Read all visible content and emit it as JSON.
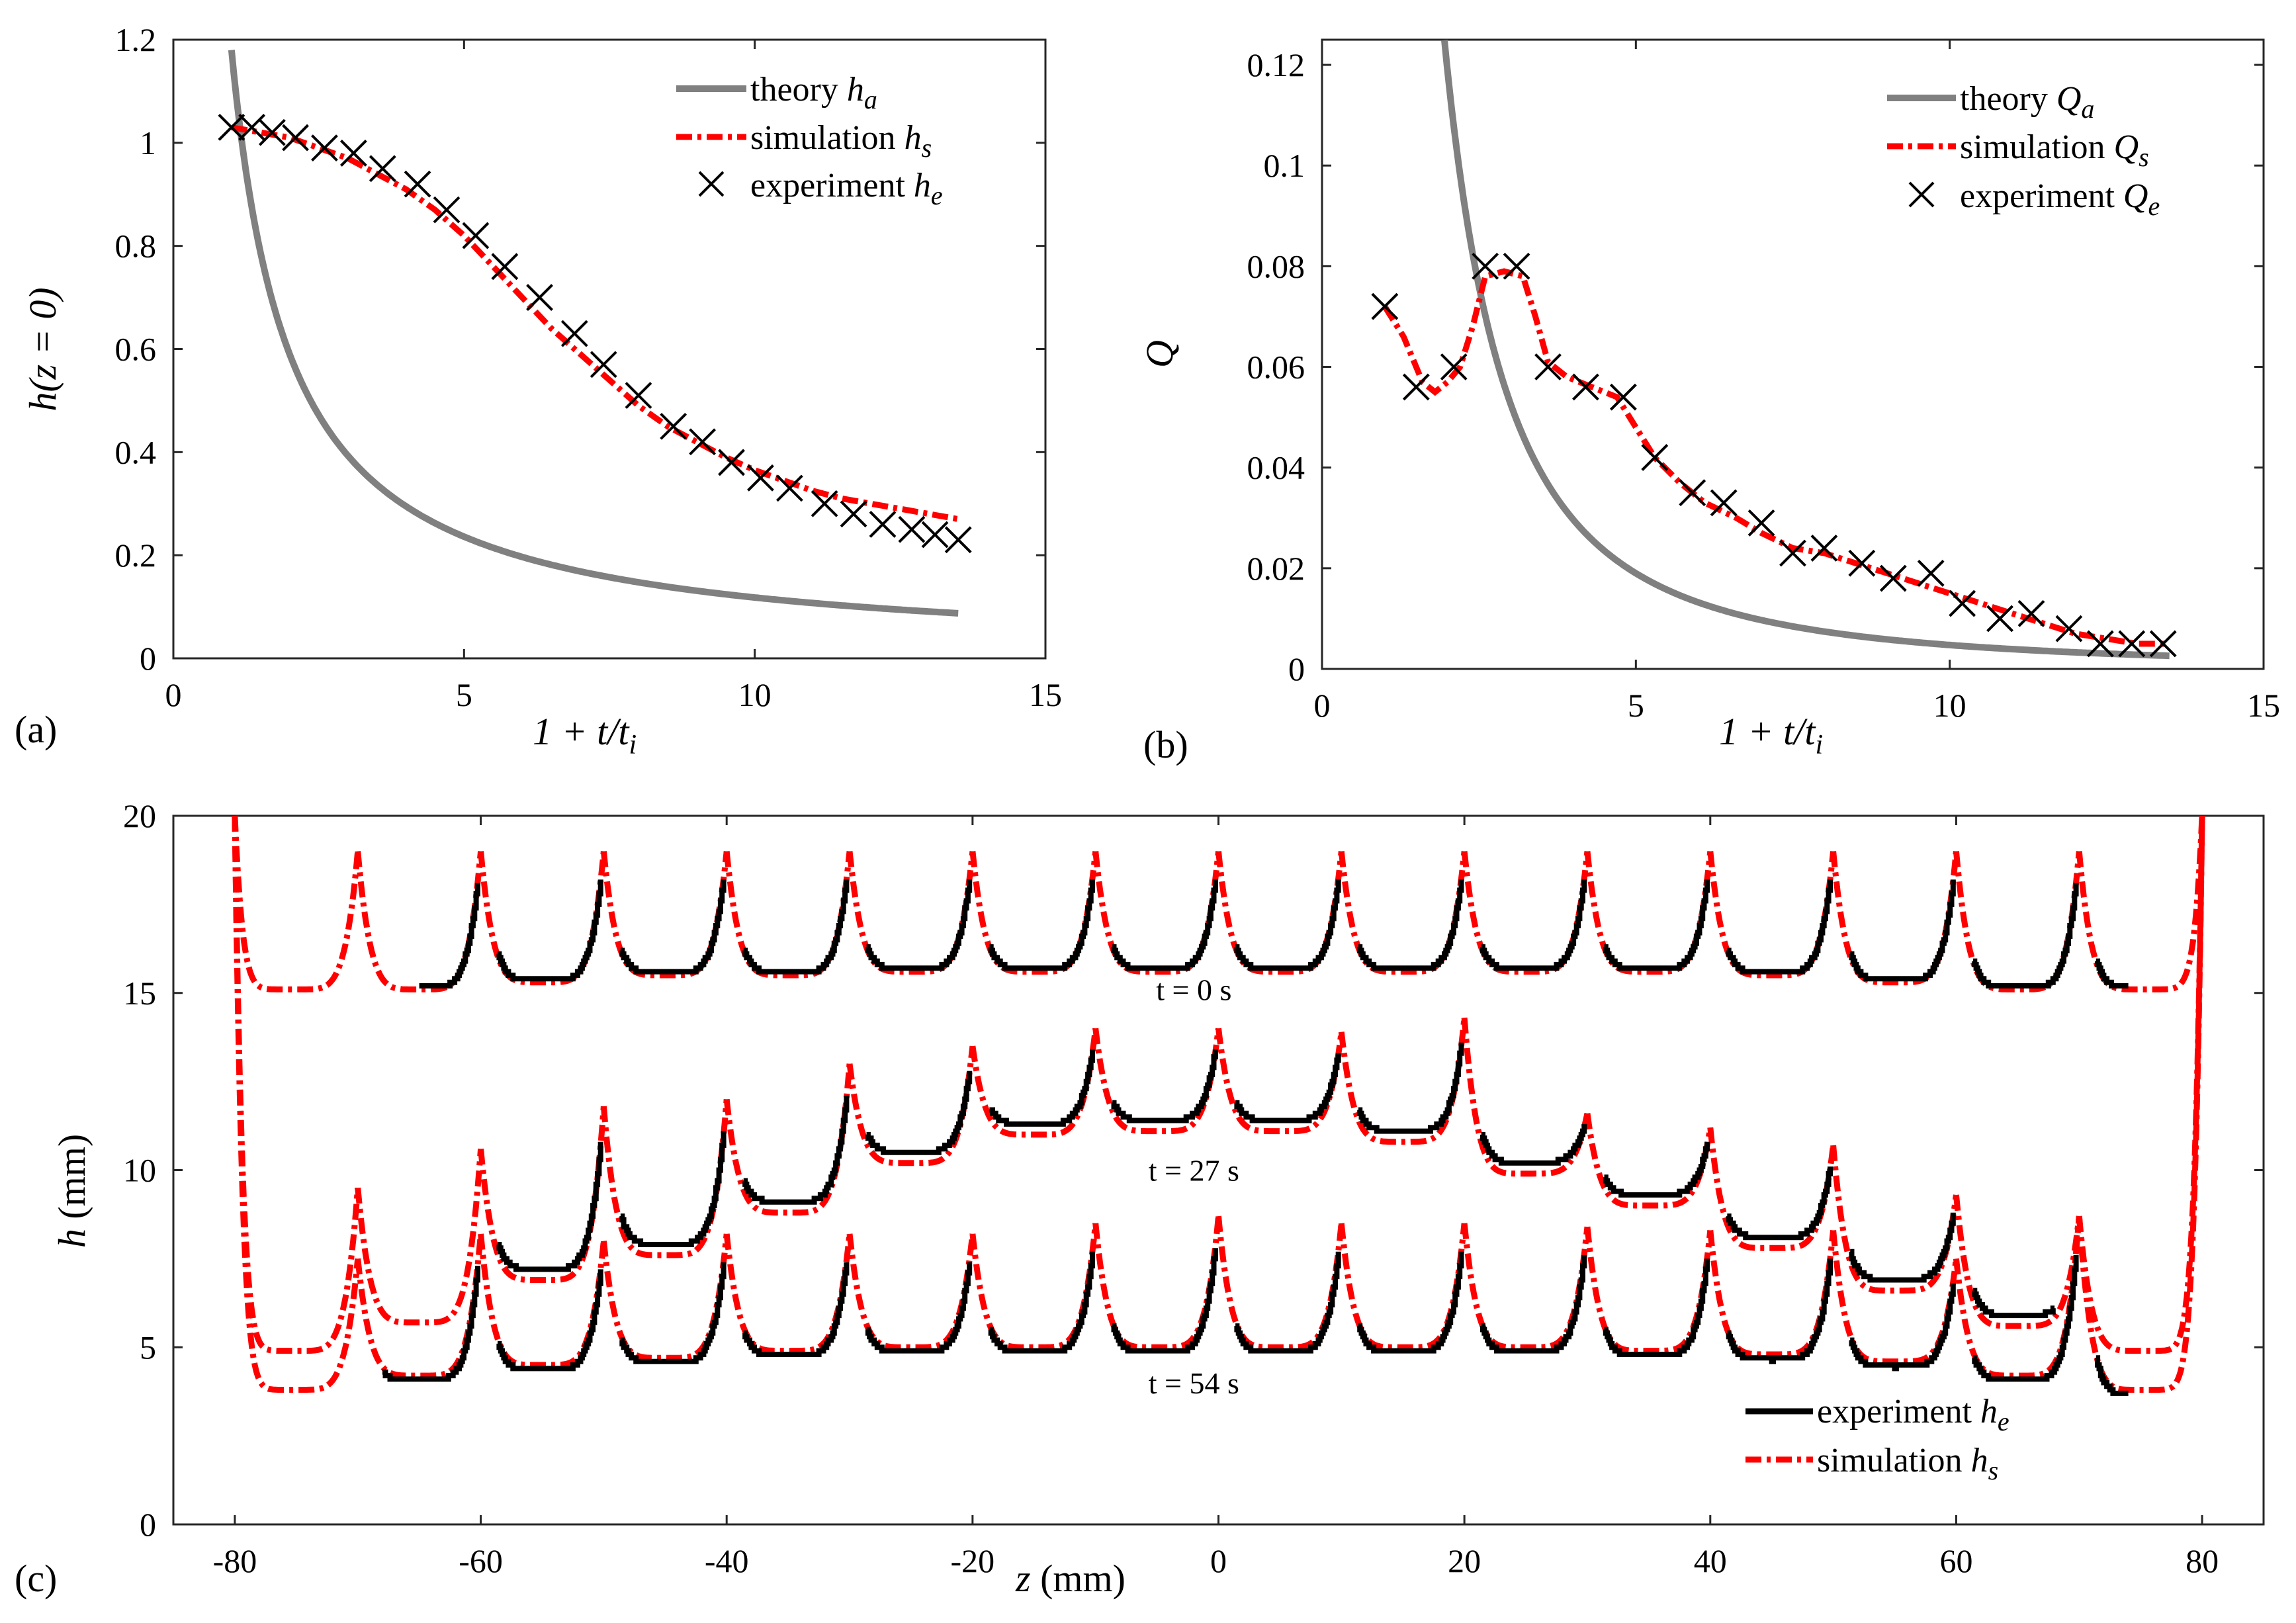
{
  "colors": {
    "theory": "#808080",
    "simulation": "#ff0000",
    "experiment": "#000000"
  },
  "chart_data": [
    {
      "id": "a",
      "type": "line",
      "panel_label": "(a)",
      "xlabel": "1 + t/t",
      "xlabel_sub": "i",
      "ylabel": "h(z = 0)",
      "xlim": [
        0,
        15
      ],
      "ylim": [
        0,
        1.2
      ],
      "xticks": [
        0,
        5,
        10,
        15
      ],
      "xtick_labels": [
        "0",
        "5",
        "10",
        "15"
      ],
      "yticks": [
        0,
        0.2,
        0.4,
        0.6,
        0.8,
        1,
        1.2
      ],
      "ytick_labels": [
        "0",
        "0.2",
        "0.4",
        "0.6",
        "0.8",
        "1",
        "1.2"
      ],
      "legend": [
        {
          "label": "theory",
          "sym": "h",
          "sub": "a",
          "style": "theory"
        },
        {
          "label": "simulation",
          "sym": "h",
          "sub": "s",
          "style": "simulation"
        },
        {
          "label": "experiment",
          "sym": "h",
          "sub": "e",
          "style": "experiment"
        }
      ],
      "series": [
        {
          "name": "theory h_a",
          "style": "theory",
          "func": "power",
          "a": 1.18,
          "p": 1,
          "x0": 1,
          "x1": 13.5
        },
        {
          "name": "simulation h_s",
          "style": "simulation",
          "x": [
            1.0,
            1.5,
            2.0,
            2.5,
            3.0,
            3.5,
            4.0,
            4.5,
            5.0,
            5.5,
            6.0,
            6.5,
            7.0,
            7.5,
            8.0,
            8.5,
            9.0,
            9.5,
            10.0,
            10.5,
            11.0,
            11.5,
            12.0,
            12.5,
            13.0,
            13.5
          ],
          "y": [
            1.03,
            1.02,
            1.01,
            0.99,
            0.97,
            0.94,
            0.91,
            0.87,
            0.82,
            0.76,
            0.7,
            0.64,
            0.59,
            0.54,
            0.49,
            0.45,
            0.42,
            0.39,
            0.365,
            0.345,
            0.325,
            0.31,
            0.3,
            0.29,
            0.28,
            0.27
          ]
        },
        {
          "name": "experiment h_e",
          "style": "experiment",
          "x": [
            1.0,
            1.35,
            1.7,
            2.1,
            2.6,
            3.1,
            3.6,
            4.2,
            4.7,
            5.2,
            5.7,
            6.3,
            6.9,
            7.4,
            8.0,
            8.6,
            9.1,
            9.6,
            10.1,
            10.6,
            11.2,
            11.7,
            12.2,
            12.7,
            13.1,
            13.5
          ],
          "y": [
            1.03,
            1.03,
            1.02,
            1.01,
            0.99,
            0.98,
            0.95,
            0.92,
            0.87,
            0.82,
            0.76,
            0.7,
            0.63,
            0.57,
            0.51,
            0.45,
            0.42,
            0.38,
            0.35,
            0.33,
            0.3,
            0.28,
            0.26,
            0.25,
            0.24,
            0.23
          ]
        }
      ]
    },
    {
      "id": "b",
      "type": "line",
      "panel_label": "(b)",
      "xlabel": "1 + t/t",
      "xlabel_sub": "i",
      "ylabel": "Q",
      "xlim": [
        0,
        15
      ],
      "ylim": [
        0,
        0.125
      ],
      "xticks": [
        0,
        5,
        10,
        15
      ],
      "xtick_labels": [
        "0",
        "5",
        "10",
        "15"
      ],
      "yticks": [
        0,
        0.02,
        0.04,
        0.06,
        0.08,
        0.1,
        0.12
      ],
      "ytick_labels": [
        "0",
        "0.02",
        "0.04",
        "0.06",
        "0.08",
        "0.1",
        "0.12"
      ],
      "legend": [
        {
          "label": "theory",
          "sym": "Q",
          "sub": "a",
          "style": "theory"
        },
        {
          "label": "simulation",
          "sym": "Q",
          "sub": "s",
          "style": "simulation"
        },
        {
          "label": "experiment",
          "sym": "Q",
          "sub": "e",
          "style": "experiment"
        }
      ],
      "series": [
        {
          "name": "theory Q_a",
          "style": "theory",
          "func": "power",
          "a": 0.475,
          "p": 2,
          "x0": 1.95,
          "x1": 13.5
        },
        {
          "name": "simulation Q_s",
          "style": "simulation",
          "x": [
            1.0,
            1.3,
            1.6,
            1.8,
            2.0,
            2.2,
            2.4,
            2.6,
            2.9,
            3.2,
            3.4,
            3.6,
            3.9,
            4.3,
            4.7,
            5.0,
            5.3,
            5.7,
            6.1,
            6.6,
            7.0,
            7.5,
            8.0,
            8.5,
            9.0,
            9.5,
            10.0,
            10.5,
            11.0,
            11.5,
            12.0,
            12.5,
            13.0,
            13.5
          ],
          "y": [
            0.072,
            0.066,
            0.057,
            0.055,
            0.057,
            0.06,
            0.068,
            0.078,
            0.079,
            0.078,
            0.07,
            0.061,
            0.058,
            0.056,
            0.054,
            0.048,
            0.042,
            0.037,
            0.033,
            0.03,
            0.027,
            0.024,
            0.023,
            0.021,
            0.019,
            0.017,
            0.015,
            0.013,
            0.011,
            0.009,
            0.007,
            0.006,
            0.005,
            0.005
          ]
        },
        {
          "name": "experiment Q_e",
          "style": "experiment",
          "x": [
            1.0,
            1.5,
            2.1,
            2.6,
            3.1,
            3.6,
            4.2,
            4.8,
            5.3,
            5.9,
            6.4,
            7.0,
            7.5,
            8.0,
            8.6,
            9.1,
            9.7,
            10.2,
            10.8,
            11.3,
            11.9,
            12.4,
            12.9,
            13.4
          ],
          "y": [
            0.072,
            0.056,
            0.06,
            0.08,
            0.08,
            0.06,
            0.056,
            0.054,
            0.042,
            0.035,
            0.033,
            0.029,
            0.023,
            0.024,
            0.021,
            0.018,
            0.019,
            0.013,
            0.01,
            0.011,
            0.008,
            0.005,
            0.005,
            0.005
          ]
        }
      ]
    },
    {
      "id": "c",
      "type": "line",
      "panel_label": "(c)",
      "xlabel": "z",
      "xlabel_unit": " (mm)",
      "ylabel": "h",
      "ylabel_unit": " (mm)",
      "xlim": [
        -85,
        85
      ],
      "ylim": [
        0,
        20
      ],
      "xticks": [
        -80,
        -60,
        -40,
        -20,
        0,
        20,
        40,
        60,
        80
      ],
      "xtick_labels": [
        "-80",
        "-60",
        "-40",
        "-20",
        "0",
        "20",
        "40",
        "60",
        "80"
      ],
      "yticks": [
        0,
        5,
        10,
        15,
        20
      ],
      "ytick_labels": [
        "0",
        "5",
        "10",
        "15",
        "20"
      ],
      "legend": [
        {
          "label": "experiment",
          "sym": "h",
          "sub": "e",
          "style": "experiment"
        },
        {
          "label": "simulation",
          "sym": "h",
          "sub": "s",
          "style": "simulation"
        }
      ],
      "annotations": [
        {
          "text": "t = 0 s",
          "x": -2,
          "y": 14.8
        },
        {
          "text": "t = 27 s",
          "x": -2,
          "y": 9.7
        },
        {
          "text": "t = 54 s",
          "x": -2,
          "y": 3.7
        }
      ],
      "profile_sets": [
        {
          "label": "t = 0 s",
          "sim_nodes": [
            -70,
            -60,
            -50,
            -40,
            -30,
            -20,
            -10,
            0,
            10,
            20,
            30,
            40,
            50,
            60,
            70
          ],
          "sim_peak": [
            19.0,
            19.0,
            19.0,
            19.0,
            19.0,
            19.0,
            19.0,
            19.0,
            19.0,
            19.0,
            19.0,
            19.0,
            19.0,
            19.0,
            19.0
          ],
          "sim_min": [
            15.1,
            15.1,
            15.3,
            15.5,
            15.5,
            15.6,
            15.6,
            15.6,
            15.6,
            15.6,
            15.6,
            15.6,
            15.5,
            15.3,
            15.1,
            15.1
          ],
          "exp_from": -65,
          "exp_to": 74,
          "exp_offset": 0.05
        },
        {
          "label": "t = 27 s",
          "sim_nodes": [
            -70,
            -60,
            -50,
            -40,
            -30,
            -20,
            -10,
            0,
            10,
            20,
            30,
            40,
            50,
            60,
            70
          ],
          "sim_peak": [
            9.5,
            10.6,
            11.8,
            12.0,
            13.0,
            13.5,
            14.0,
            14.0,
            13.9,
            14.3,
            11.6,
            11.2,
            10.7,
            9.3,
            8.7
          ],
          "sim_min": [
            4.9,
            5.7,
            6.9,
            7.6,
            8.8,
            10.2,
            11.0,
            11.1,
            11.1,
            10.8,
            9.9,
            9.0,
            7.8,
            6.6,
            5.6,
            4.9
          ],
          "exp_from": -60,
          "exp_to": 68,
          "exp_offset": 0.3
        },
        {
          "label": "t = 54 s",
          "sim_nodes": [
            -70,
            -60,
            -50,
            -40,
            -30,
            -20,
            -10,
            0,
            10,
            20,
            30,
            40,
            50,
            60,
            70
          ],
          "sim_peak": [
            7.5,
            8.2,
            8.0,
            8.2,
            8.2,
            8.2,
            8.5,
            8.7,
            8.5,
            8.5,
            8.4,
            8.3,
            8.3,
            7.5,
            8.7
          ],
          "sim_min": [
            3.8,
            4.2,
            4.5,
            4.7,
            4.9,
            5.0,
            5.0,
            5.0,
            5.0,
            5.0,
            5.0,
            4.9,
            4.8,
            4.6,
            4.2,
            3.8
          ],
          "exp_from": -68,
          "exp_to": 74,
          "exp_offset": -0.15
        }
      ]
    }
  ]
}
